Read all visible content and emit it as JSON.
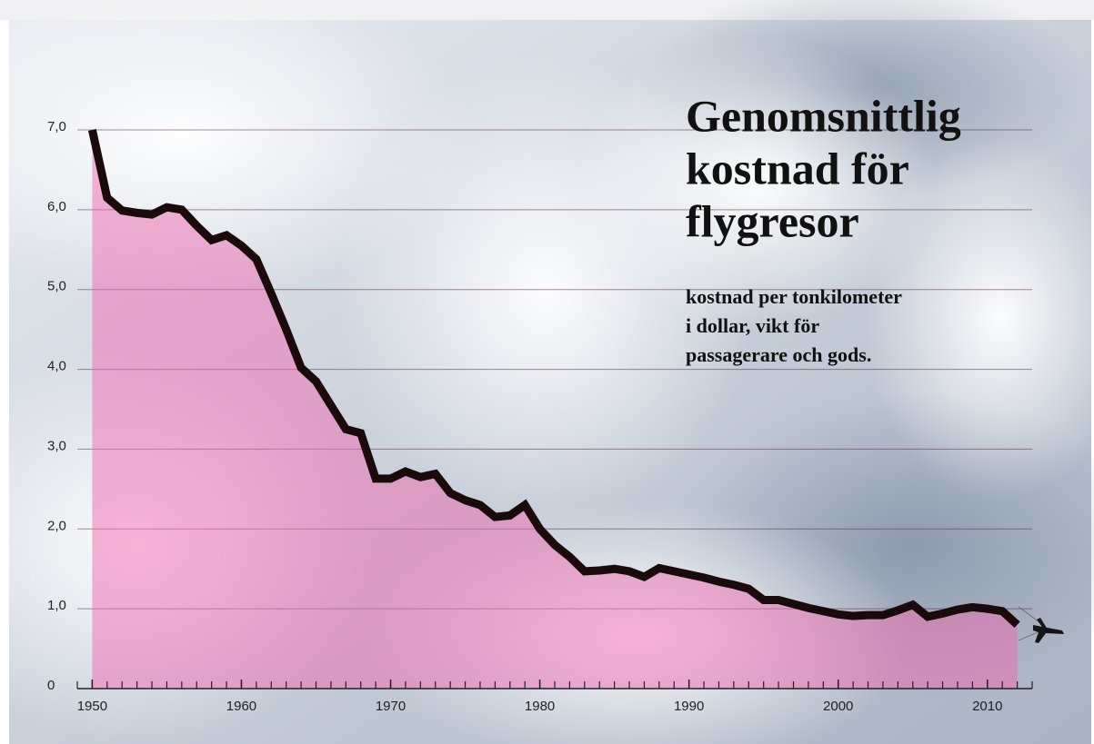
{
  "chart_data": {
    "type": "area",
    "title": [
      "Genomsnittlig",
      "kostnad för",
      "flygresor"
    ],
    "subtitle": [
      "kostnad per tonkilometer",
      "i dollar, vikt för",
      "passagerare och gods."
    ],
    "x": [
      1950,
      1951,
      1952,
      1953,
      1954,
      1955,
      1956,
      1957,
      1958,
      1959,
      1960,
      1961,
      1962,
      1963,
      1964,
      1965,
      1966,
      1967,
      1968,
      1969,
      1970,
      1971,
      1972,
      1973,
      1974,
      1975,
      1976,
      1977,
      1978,
      1979,
      1980,
      1981,
      1982,
      1983,
      1984,
      1985,
      1986,
      1987,
      1988,
      1989,
      1990,
      1991,
      1992,
      1993,
      1994,
      1995,
      1996,
      1997,
      1998,
      1999,
      2000,
      2001,
      2002,
      2003,
      2004,
      2005,
      2006,
      2007,
      2008,
      2009,
      2010,
      2011,
      2012
    ],
    "values": [
      7.0,
      6.15,
      5.99,
      5.96,
      5.94,
      6.03,
      6.0,
      5.8,
      5.62,
      5.68,
      5.55,
      5.38,
      4.95,
      4.5,
      4.02,
      3.85,
      3.55,
      3.25,
      3.2,
      2.63,
      2.63,
      2.72,
      2.65,
      2.69,
      2.45,
      2.36,
      2.3,
      2.15,
      2.17,
      2.3,
      2.0,
      1.8,
      1.65,
      1.47,
      1.48,
      1.5,
      1.47,
      1.4,
      1.51,
      1.47,
      1.43,
      1.39,
      1.34,
      1.3,
      1.25,
      1.11,
      1.11,
      1.06,
      1.01,
      0.97,
      0.93,
      0.91,
      0.92,
      0.92,
      0.98,
      1.05,
      0.9,
      0.94,
      0.99,
      1.02,
      1.0,
      0.97,
      0.8
    ],
    "color": "#1a0a0c",
    "fill_color": "#f06aaf",
    "xlim": [
      1949,
      2013
    ],
    "xticks": [
      1950,
      1960,
      1970,
      1980,
      1990,
      2000,
      2010
    ],
    "ylim": [
      0,
      7
    ],
    "yticks": [
      0,
      {
        "value": 1,
        "label": "1,0"
      },
      {
        "value": 2,
        "label": "2,0"
      },
      {
        "value": 3,
        "label": "3,0"
      },
      {
        "value": 4,
        "label": "4,0"
      },
      {
        "value": 5,
        "label": "5,0"
      },
      {
        "value": 6,
        "label": "6,0"
      },
      {
        "value": 7,
        "label": "7,0"
      }
    ],
    "grid": true
  }
}
